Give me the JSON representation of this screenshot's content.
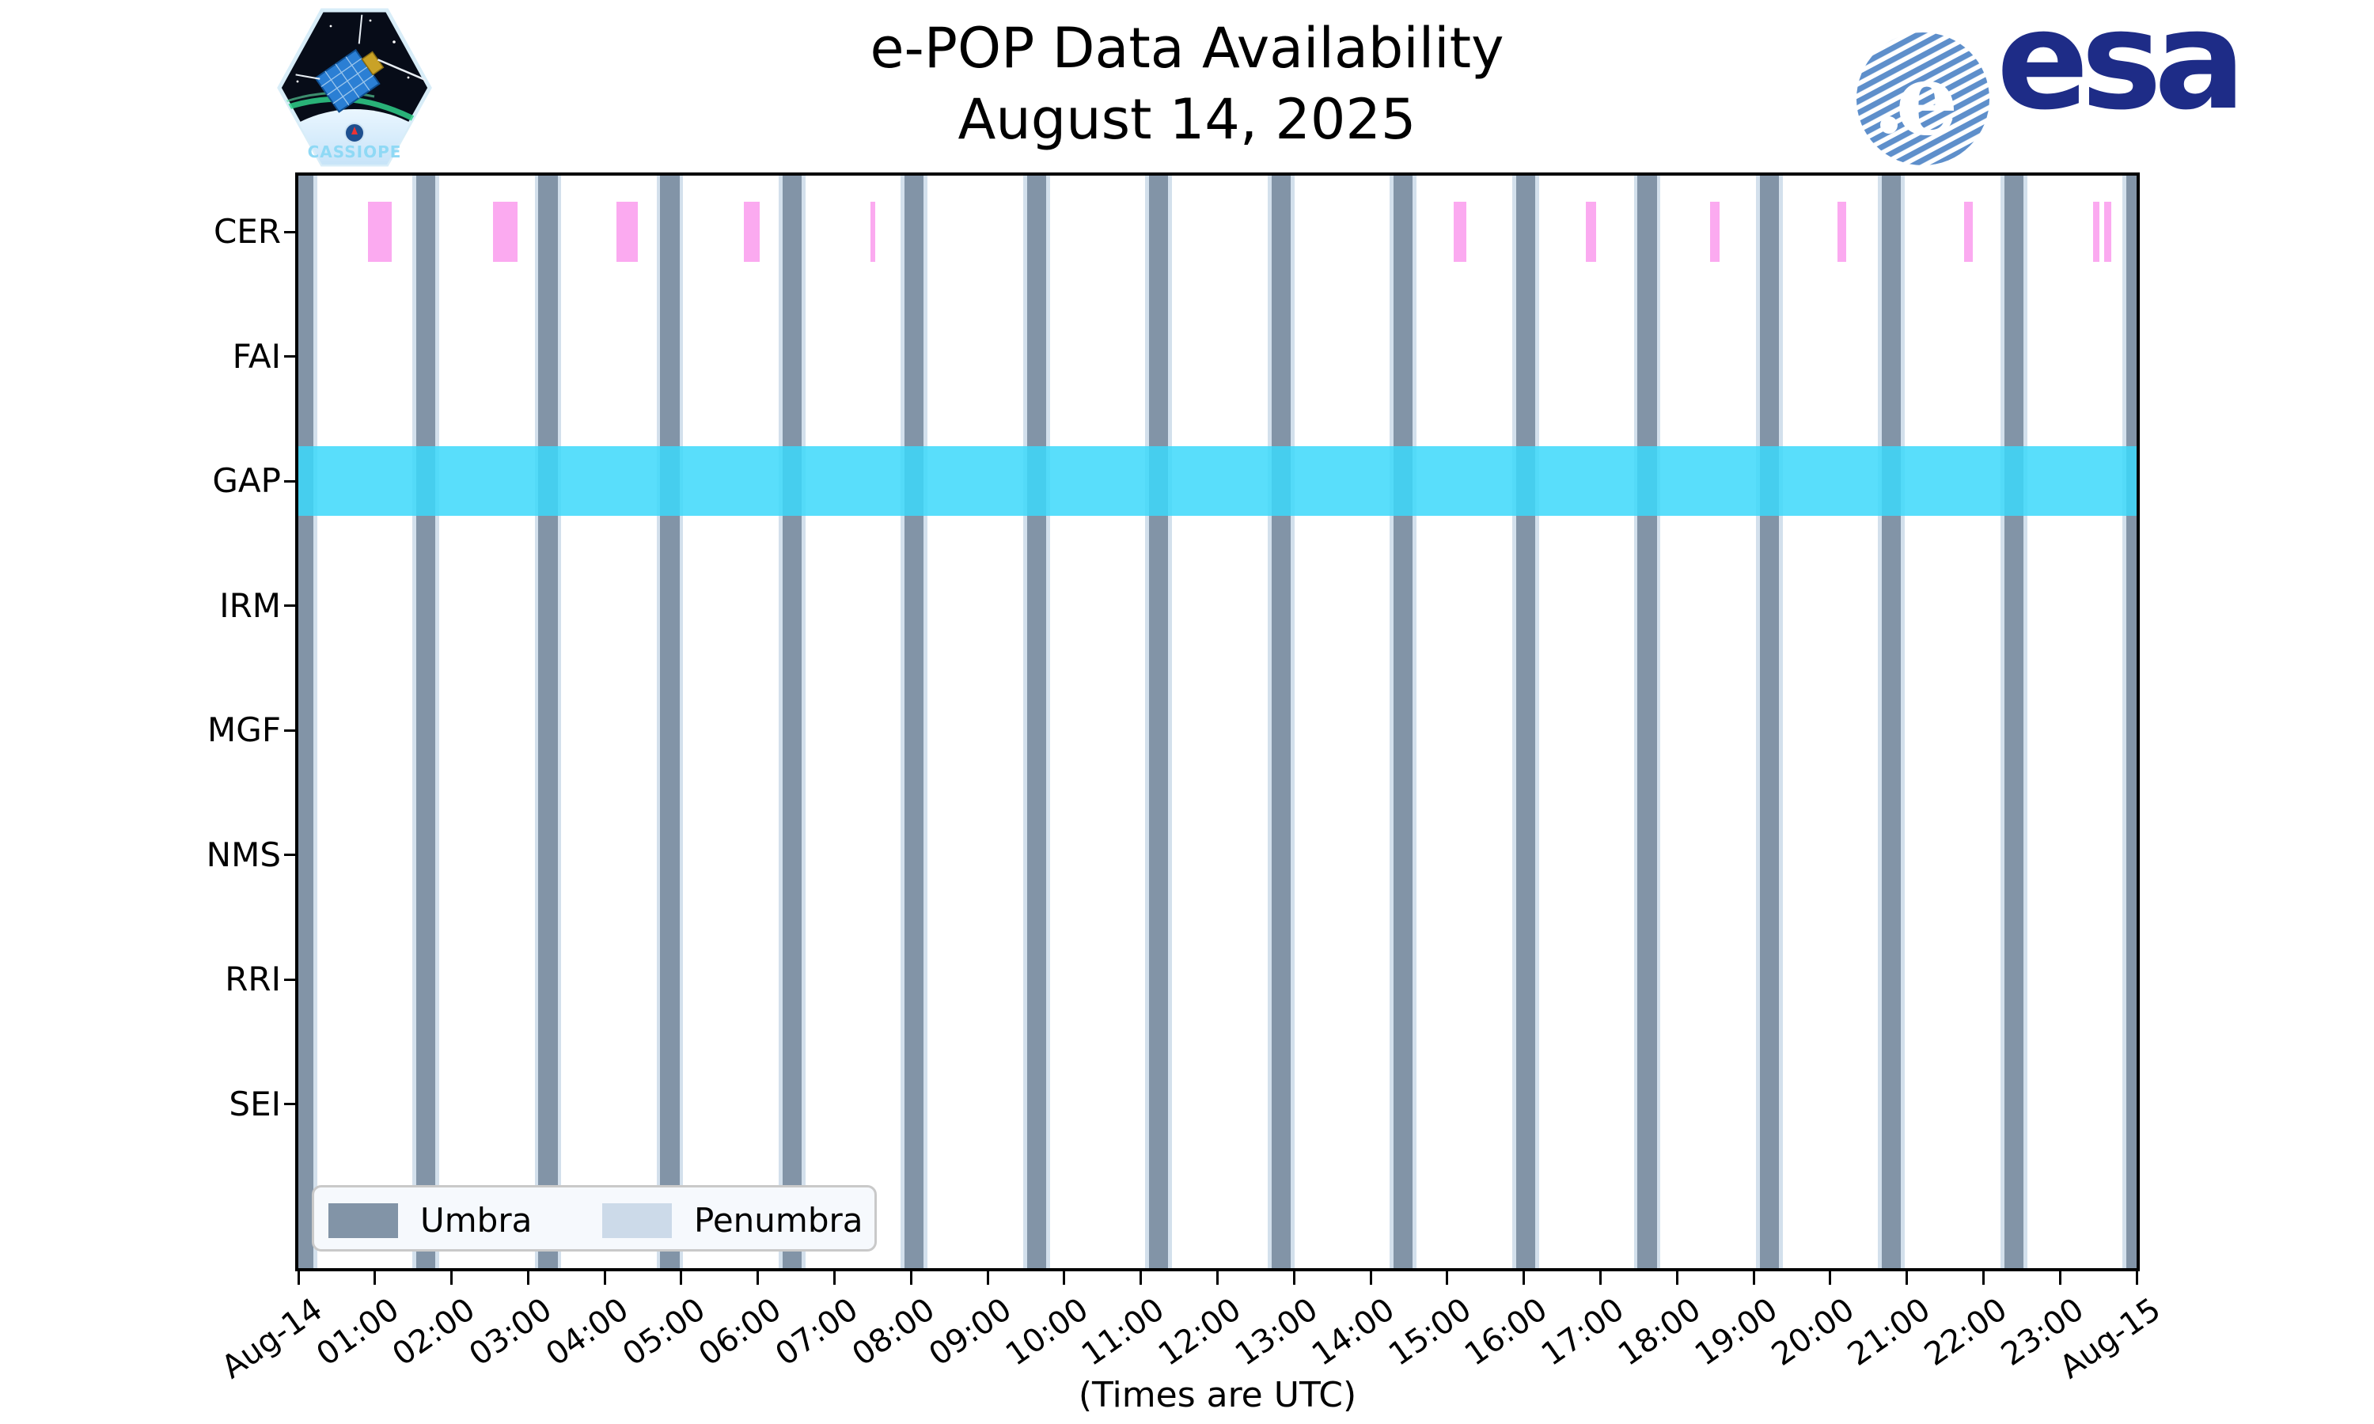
{
  "header": {
    "title_line1": "e-POP Data Availability",
    "title_line2": "August 14, 2025"
  },
  "logos": {
    "cassiope_label": "CASSIOPE",
    "esa_label": "esa"
  },
  "legend": {
    "umbra_label": "Umbra",
    "penumbra_label": "Penumbra"
  },
  "footer": {
    "caption": "(Times are UTC)"
  },
  "colors": {
    "umbra": "#8294a7",
    "penumbra": "#d3e0ec",
    "cer_availability": "#fbaaf0",
    "gap_availability_rgba": "rgba(60,216,250,0.85)",
    "legend_penumbra_swatch": "#ccdae9",
    "axis": "#000000",
    "esa_blue": "#1e2c87"
  },
  "chart_data": {
    "type": "timeline",
    "title": "e-POP Data Availability",
    "subtitle": "August 14, 2025",
    "x_axis_note": "Times are UTC, Aug-14 00:00 to Aug-15 00:00",
    "x_hours_range": [
      0,
      24
    ],
    "x_tick_labels": [
      "Aug-14",
      "01:00",
      "02:00",
      "03:00",
      "04:00",
      "05:00",
      "06:00",
      "07:00",
      "08:00",
      "09:00",
      "10:00",
      "11:00",
      "12:00",
      "13:00",
      "14:00",
      "15:00",
      "16:00",
      "17:00",
      "18:00",
      "19:00",
      "20:00",
      "21:00",
      "22:00",
      "23:00",
      "Aug-15"
    ],
    "instrument_rows": [
      "CER",
      "FAI",
      "GAP",
      "IRM",
      "MGF",
      "NMS",
      "RRI",
      "SEI"
    ],
    "availability_intervals_hours": {
      "CER": [
        [
          0.91,
          1.22
        ],
        [
          2.54,
          2.86
        ],
        [
          4.15,
          4.43
        ],
        [
          5.82,
          6.02
        ],
        [
          7.47,
          7.53
        ],
        [
          15.08,
          15.25
        ],
        [
          16.81,
          16.94
        ],
        [
          18.43,
          18.56
        ],
        [
          20.09,
          20.21
        ],
        [
          21.75,
          21.86
        ],
        [
          23.43,
          23.51
        ],
        [
          23.58,
          23.67
        ]
      ],
      "FAI": [],
      "GAP": [
        [
          0,
          24
        ]
      ],
      "IRM": [],
      "MGF": [],
      "NMS": [],
      "RRI": [],
      "SEI": []
    },
    "umbra_centers_hours": [
      0.07,
      1.66,
      3.26,
      4.85,
      6.45,
      8.04,
      9.64,
      11.23,
      12.83,
      14.42,
      16.02,
      17.61,
      19.21,
      20.8,
      22.4,
      23.99
    ],
    "umbra_width_hours": 0.25,
    "penumbra_total_width_hours": 0.35,
    "legend_entries": [
      "Umbra",
      "Penumbra"
    ],
    "legend_position": "lower left"
  }
}
